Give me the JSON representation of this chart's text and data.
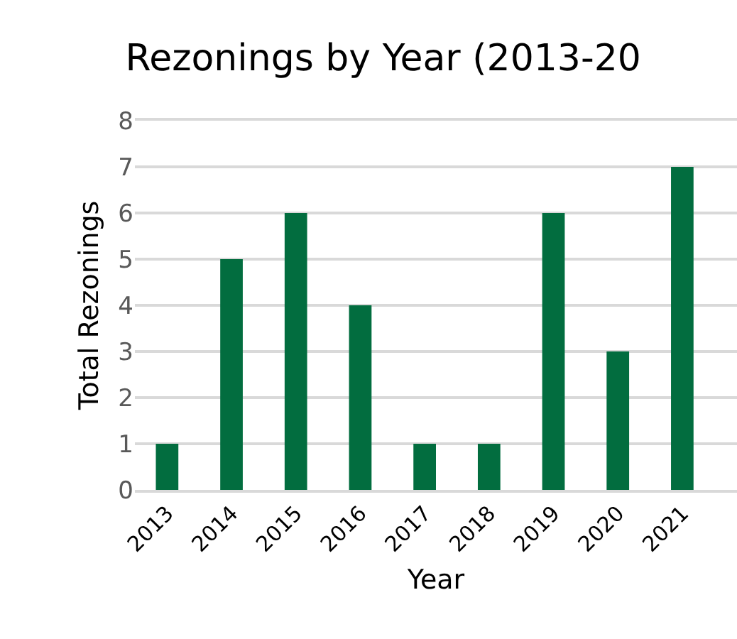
{
  "chart_data": {
    "type": "bar",
    "title": "Rezonings by Year (2013-20",
    "xlabel": "Year",
    "ylabel": "Total Rezonings",
    "categories": [
      "2013",
      "2014",
      "2015",
      "2016",
      "2017",
      "2018",
      "2019",
      "2020",
      "2021"
    ],
    "values": [
      1,
      5,
      6,
      4,
      1,
      1,
      6,
      3,
      7
    ],
    "color": "#026d3f",
    "ylim": [
      0,
      8
    ],
    "yticks": [
      0,
      1,
      2,
      3,
      4,
      5,
      6,
      7,
      8
    ],
    "grid": "y"
  }
}
